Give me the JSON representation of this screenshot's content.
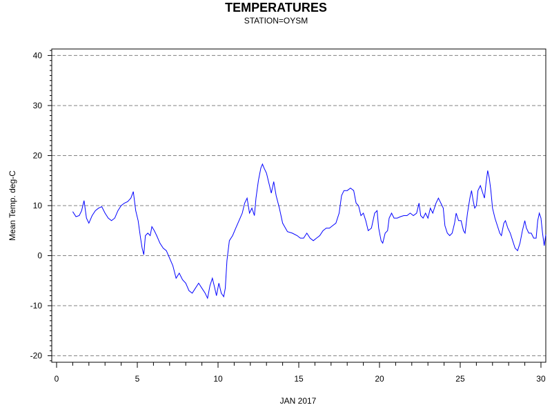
{
  "chart_data": {
    "type": "line",
    "title": "TEMPERATURES",
    "subtitle": "STATION=OYSM",
    "xlabel": "JAN 2017",
    "ylabel": "Mean Temp. deg-C",
    "xlim": [
      -0.3,
      30.3
    ],
    "ylim": [
      -21.3,
      41.3
    ],
    "x_ticks": [
      0,
      5,
      10,
      15,
      20,
      25,
      30
    ],
    "y_ticks": [
      -20,
      -10,
      0,
      10,
      20,
      30,
      40
    ],
    "grid": "horizontal dashed",
    "series": [
      {
        "color": "#0000ff",
        "points": [
          [
            1.0,
            8.8
          ],
          [
            1.2,
            7.8
          ],
          [
            1.4,
            8.0
          ],
          [
            1.55,
            9.0
          ],
          [
            1.7,
            11.0
          ],
          [
            1.85,
            7.5
          ],
          [
            2.0,
            6.5
          ],
          [
            2.2,
            8.0
          ],
          [
            2.4,
            9.0
          ],
          [
            2.6,
            9.5
          ],
          [
            2.8,
            9.8
          ],
          [
            3.0,
            8.5
          ],
          [
            3.2,
            7.5
          ],
          [
            3.4,
            7.0
          ],
          [
            3.6,
            7.5
          ],
          [
            3.8,
            9.0
          ],
          [
            4.0,
            10.0
          ],
          [
            4.2,
            10.5
          ],
          [
            4.4,
            10.8
          ],
          [
            4.6,
            11.5
          ],
          [
            4.75,
            12.8
          ],
          [
            4.9,
            9.0
          ],
          [
            5.05,
            7.0
          ],
          [
            5.2,
            3.5
          ],
          [
            5.3,
            1.5
          ],
          [
            5.4,
            0.2
          ],
          [
            5.5,
            4.0
          ],
          [
            5.65,
            4.5
          ],
          [
            5.8,
            4.0
          ],
          [
            5.9,
            5.8
          ],
          [
            6.05,
            5.0
          ],
          [
            6.2,
            4.0
          ],
          [
            6.4,
            2.5
          ],
          [
            6.6,
            1.5
          ],
          [
            6.8,
            1.0
          ],
          [
            7.0,
            -0.5
          ],
          [
            7.2,
            -2.0
          ],
          [
            7.4,
            -4.5
          ],
          [
            7.6,
            -3.5
          ],
          [
            7.8,
            -4.8
          ],
          [
            8.0,
            -5.5
          ],
          [
            8.2,
            -7.0
          ],
          [
            8.4,
            -7.5
          ],
          [
            8.6,
            -6.5
          ],
          [
            8.8,
            -5.5
          ],
          [
            9.0,
            -6.5
          ],
          [
            9.2,
            -7.5
          ],
          [
            9.35,
            -8.5
          ],
          [
            9.5,
            -6.0
          ],
          [
            9.65,
            -4.5
          ],
          [
            9.8,
            -6.5
          ],
          [
            9.9,
            -8.0
          ],
          [
            10.05,
            -5.5
          ],
          [
            10.2,
            -7.5
          ],
          [
            10.35,
            -8.2
          ],
          [
            10.45,
            -6.5
          ],
          [
            10.55,
            -1.0
          ],
          [
            10.7,
            3.0
          ],
          [
            10.9,
            4.0
          ],
          [
            11.1,
            5.5
          ],
          [
            11.3,
            7.0
          ],
          [
            11.5,
            8.5
          ],
          [
            11.65,
            10.5
          ],
          [
            11.8,
            11.5
          ],
          [
            11.95,
            8.5
          ],
          [
            12.1,
            9.5
          ],
          [
            12.25,
            8.0
          ],
          [
            12.35,
            11.5
          ],
          [
            12.5,
            15.0
          ],
          [
            12.65,
            17.5
          ],
          [
            12.75,
            18.3
          ],
          [
            12.85,
            17.5
          ],
          [
            13.0,
            16.5
          ],
          [
            13.15,
            14.5
          ],
          [
            13.3,
            12.5
          ],
          [
            13.45,
            14.8
          ],
          [
            13.6,
            12.0
          ],
          [
            13.8,
            9.5
          ],
          [
            14.0,
            6.5
          ],
          [
            14.3,
            4.8
          ],
          [
            14.6,
            4.5
          ],
          [
            14.9,
            4.0
          ],
          [
            15.1,
            3.5
          ],
          [
            15.3,
            3.5
          ],
          [
            15.5,
            4.5
          ],
          [
            15.7,
            3.5
          ],
          [
            15.9,
            3.0
          ],
          [
            16.1,
            3.5
          ],
          [
            16.3,
            4.0
          ],
          [
            16.5,
            5.0
          ],
          [
            16.7,
            5.5
          ],
          [
            16.9,
            5.5
          ],
          [
            17.1,
            6.0
          ],
          [
            17.3,
            6.5
          ],
          [
            17.5,
            8.5
          ],
          [
            17.65,
            12.0
          ],
          [
            17.8,
            13.0
          ],
          [
            18.0,
            13.0
          ],
          [
            18.2,
            13.5
          ],
          [
            18.4,
            13.0
          ],
          [
            18.55,
            10.5
          ],
          [
            18.7,
            10.0
          ],
          [
            18.85,
            8.0
          ],
          [
            19.0,
            8.5
          ],
          [
            19.15,
            7.0
          ],
          [
            19.3,
            5.0
          ],
          [
            19.5,
            5.5
          ],
          [
            19.7,
            8.5
          ],
          [
            19.85,
            9.0
          ],
          [
            19.95,
            5.5
          ],
          [
            20.1,
            3.0
          ],
          [
            20.2,
            2.5
          ],
          [
            20.35,
            4.5
          ],
          [
            20.5,
            5.0
          ],
          [
            20.6,
            7.5
          ],
          [
            20.75,
            8.5
          ],
          [
            20.9,
            7.5
          ],
          [
            21.1,
            7.5
          ],
          [
            21.3,
            7.8
          ],
          [
            21.5,
            8.0
          ],
          [
            21.7,
            8.0
          ],
          [
            21.9,
            8.5
          ],
          [
            22.1,
            8.0
          ],
          [
            22.3,
            8.5
          ],
          [
            22.45,
            10.5
          ],
          [
            22.55,
            8.0
          ],
          [
            22.7,
            7.5
          ],
          [
            22.85,
            8.5
          ],
          [
            23.0,
            7.5
          ],
          [
            23.15,
            9.5
          ],
          [
            23.3,
            8.5
          ],
          [
            23.5,
            10.5
          ],
          [
            23.65,
            11.5
          ],
          [
            23.8,
            10.5
          ],
          [
            23.95,
            9.5
          ],
          [
            24.05,
            6.0
          ],
          [
            24.2,
            4.5
          ],
          [
            24.35,
            4.0
          ],
          [
            24.5,
            4.5
          ],
          [
            24.65,
            6.5
          ],
          [
            24.75,
            8.5
          ],
          [
            24.9,
            7.0
          ],
          [
            25.05,
            7.0
          ],
          [
            25.2,
            5.0
          ],
          [
            25.3,
            4.5
          ],
          [
            25.45,
            8.5
          ],
          [
            25.6,
            11.5
          ],
          [
            25.7,
            13.0
          ],
          [
            25.8,
            11.0
          ],
          [
            25.9,
            9.5
          ],
          [
            26.0,
            10.0
          ],
          [
            26.1,
            13.0
          ],
          [
            26.25,
            14.0
          ],
          [
            26.4,
            12.5
          ],
          [
            26.5,
            11.5
          ],
          [
            26.6,
            14.5
          ],
          [
            26.7,
            17.0
          ],
          [
            26.8,
            15.5
          ],
          [
            26.9,
            13.0
          ],
          [
            27.0,
            9.5
          ],
          [
            27.15,
            7.5
          ],
          [
            27.3,
            6.0
          ],
          [
            27.45,
            4.5
          ],
          [
            27.55,
            4.0
          ],
          [
            27.7,
            6.5
          ],
          [
            27.8,
            7.0
          ],
          [
            27.95,
            5.5
          ],
          [
            28.1,
            4.5
          ],
          [
            28.25,
            3.0
          ],
          [
            28.4,
            1.5
          ],
          [
            28.55,
            1.0
          ],
          [
            28.7,
            2.5
          ],
          [
            28.85,
            5.0
          ],
          [
            29.0,
            7.0
          ],
          [
            29.1,
            5.5
          ],
          [
            29.25,
            4.5
          ],
          [
            29.4,
            4.5
          ],
          [
            29.55,
            3.5
          ],
          [
            29.7,
            3.5
          ],
          [
            29.8,
            7.0
          ],
          [
            29.9,
            8.5
          ],
          [
            30.0,
            7.5
          ],
          [
            30.1,
            4.5
          ],
          [
            30.2,
            2.0
          ],
          [
            30.3,
            4.2
          ]
        ]
      }
    ]
  }
}
